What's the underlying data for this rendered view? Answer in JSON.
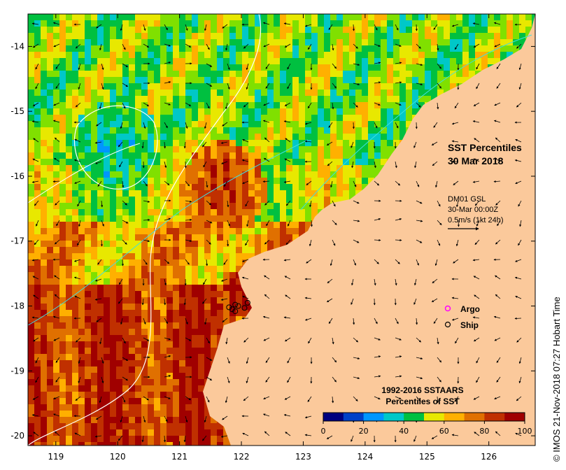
{
  "map": {
    "title": "SST Percentiles",
    "date": "30 Mar 2018",
    "current_info": [
      "DM01 GSL",
      "30-Mar 00:00Z",
      "0.5m/s (1kt 24h)"
    ],
    "x_ticks": [
      "119",
      "120",
      "121",
      "122",
      "123",
      "124",
      "125",
      "126"
    ],
    "y_ticks": [
      "-14",
      "-15",
      "-16",
      "-17",
      "-18",
      "-19",
      "-20"
    ],
    "lon_range": [
      118.55,
      126.75
    ],
    "lat_range": [
      -20.15,
      -13.5
    ],
    "legend": {
      "argo_label": "Argo",
      "argo_color": "#ff00ff",
      "ship_label": "Ship",
      "ship_color": "#000000"
    },
    "colorbar": {
      "title_line1": "1992-2016 SSTAARS",
      "title_line2": "Percentiles of SST",
      "tick_labels": [
        "0",
        "20",
        "40",
        "60",
        "80",
        "100"
      ],
      "colors": [
        "#00007f",
        "#0040c8",
        "#0096ff",
        "#00c8c8",
        "#00c040",
        "#80e000",
        "#e8e800",
        "#ffb000",
        "#e07000",
        "#c03000",
        "#a00000"
      ]
    },
    "land_color": "#fbc99b",
    "credit": "© IMOS 21-Nov-2018 07:27 Hobart Time"
  }
}
